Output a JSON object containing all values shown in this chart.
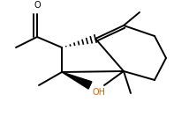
{
  "bg_color": "#ffffff",
  "line_color": "#000000",
  "line_width": 1.4,
  "OH_color": "#cc6600",
  "O_color": "#000000",
  "figsize": [
    2.14,
    1.49
  ],
  "dpi": 100
}
